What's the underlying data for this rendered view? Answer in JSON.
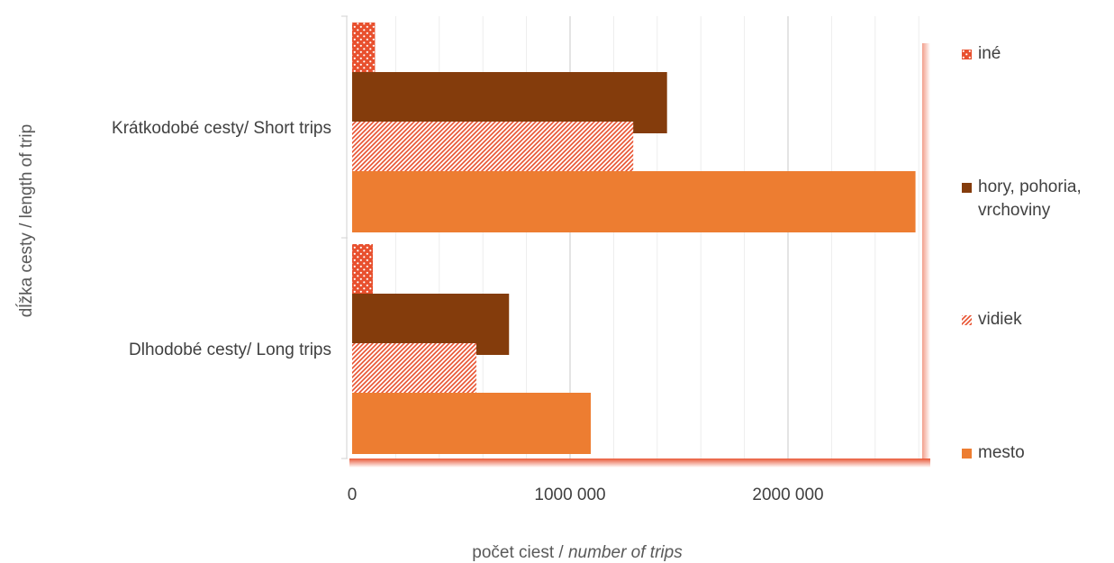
{
  "chart_data": {
    "type": "bar",
    "orientation": "horizontal",
    "xlabel_plain": "počet ciest /",
    "xlabel_italic": "number of trips",
    "ylabel": "dĺžka cesty / length of trip",
    "xlim": [
      0,
      2700000
    ],
    "xticks": [
      {
        "value": 0,
        "label": "0"
      },
      {
        "value": 1000000,
        "label": "1000 000"
      },
      {
        "value": 2000000,
        "label": "2000 000"
      }
    ],
    "categories": [
      "Krátkodobé cesty/ Short trips",
      "Dlhodobé cesty/ Long trips"
    ],
    "series": [
      {
        "name": "iné",
        "values": [
          105000,
          95000
        ],
        "color": "#E8502E",
        "pattern": "dots"
      },
      {
        "name": "hory, pohoria, vrchoviny",
        "values": [
          1445000,
          720000
        ],
        "color": "#843C0C",
        "pattern": "solid"
      },
      {
        "name": "vidiek",
        "values": [
          1290000,
          570000
        ],
        "color": "#E8502E",
        "pattern": "diagonal"
      },
      {
        "name": "mesto",
        "values": [
          2585000,
          1095000
        ],
        "color": "#ED7D31",
        "pattern": "solid"
      }
    ],
    "grid": true,
    "legend_position": "right"
  }
}
